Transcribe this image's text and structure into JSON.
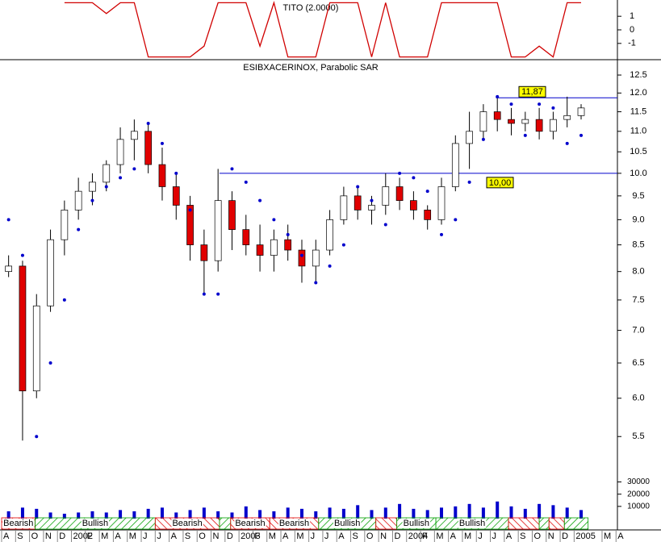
{
  "chart_data": {
    "type": "candlestick",
    "title": "ESIBXACERINOX, Parabolic SAR",
    "x": [
      0.5,
      1.5,
      2.5,
      3.5,
      4.5,
      5.5,
      6.5,
      7.5,
      8.5,
      9.5,
      10.5,
      11.5,
      12.5,
      13.5,
      14.5,
      15.5,
      16.5,
      17.5,
      18.5,
      19.5,
      20.5,
      21.5,
      22.5,
      23.5,
      24.5,
      25.5,
      26.5,
      27.5,
      28.5,
      29.5,
      30.5,
      31.5,
      32.5,
      33.5,
      34.5,
      35.5,
      36.5,
      37.5,
      38.5,
      39.5,
      40.5,
      41.5
    ],
    "xlim": [
      0,
      44.1
    ],
    "xticks": [
      {
        "value": 0,
        "label": "A"
      },
      {
        "value": 1,
        "label": "S"
      },
      {
        "value": 2,
        "label": "O"
      },
      {
        "value": 3,
        "label": "N"
      },
      {
        "value": 4,
        "label": "D"
      },
      {
        "value": 5,
        "label": "2002"
      },
      {
        "value": 6,
        "label": "F"
      },
      {
        "value": 7,
        "label": "M"
      },
      {
        "value": 8,
        "label": "A"
      },
      {
        "value": 9,
        "label": "M"
      },
      {
        "value": 10,
        "label": "J"
      },
      {
        "value": 11,
        "label": "J"
      },
      {
        "value": 12,
        "label": "A"
      },
      {
        "value": 13,
        "label": "S"
      },
      {
        "value": 14,
        "label": "O"
      },
      {
        "value": 15,
        "label": "N"
      },
      {
        "value": 16,
        "label": "D"
      },
      {
        "value": 17,
        "label": "2003"
      },
      {
        "value": 18,
        "label": "F"
      },
      {
        "value": 19,
        "label": "M"
      },
      {
        "value": 20,
        "label": "A"
      },
      {
        "value": 21,
        "label": "M"
      },
      {
        "value": 22,
        "label": "J"
      },
      {
        "value": 23,
        "label": "J"
      },
      {
        "value": 24,
        "label": "A"
      },
      {
        "value": 25,
        "label": "S"
      },
      {
        "value": 26,
        "label": "O"
      },
      {
        "value": 27,
        "label": "N"
      },
      {
        "value": 28,
        "label": "D"
      },
      {
        "value": 29,
        "label": "2004"
      },
      {
        "value": 30,
        "label": "F"
      },
      {
        "value": 31,
        "label": "M"
      },
      {
        "value": 32,
        "label": "A"
      },
      {
        "value": 33,
        "label": "M"
      },
      {
        "value": 34,
        "label": "J"
      },
      {
        "value": 35,
        "label": "J"
      },
      {
        "value": 36,
        "label": "A"
      },
      {
        "value": 37,
        "label": "S"
      },
      {
        "value": 38,
        "label": "O"
      },
      {
        "value": 39,
        "label": "N"
      },
      {
        "value": 40,
        "label": "D"
      },
      {
        "value": 41,
        "label": "2005"
      },
      {
        "value": 43,
        "label": "M"
      },
      {
        "value": 44,
        "label": "A"
      }
    ],
    "ohlc": {
      "open": [
        8.0,
        8.1,
        6.1,
        7.4,
        8.6,
        9.2,
        9.6,
        9.8,
        10.2,
        10.8,
        11.0,
        10.2,
        9.7,
        9.3,
        8.5,
        8.2,
        9.4,
        8.8,
        8.5,
        8.3,
        8.6,
        8.4,
        8.1,
        8.4,
        9.0,
        9.5,
        9.2,
        9.3,
        9.7,
        9.4,
        9.2,
        9.0,
        9.7,
        10.7,
        11.0,
        11.5,
        11.3,
        11.2,
        11.3,
        11.0,
        11.3,
        11.4
      ],
      "high": [
        8.3,
        8.2,
        7.6,
        8.8,
        9.4,
        9.9,
        10.0,
        10.3,
        11.1,
        11.3,
        11.2,
        10.6,
        10.0,
        9.5,
        8.8,
        10.1,
        9.6,
        9.1,
        8.9,
        8.8,
        8.9,
        8.6,
        8.6,
        9.2,
        9.7,
        9.7,
        9.5,
        10.0,
        9.9,
        9.6,
        9.3,
        9.9,
        10.9,
        11.5,
        11.7,
        11.9,
        11.6,
        11.5,
        11.6,
        11.5,
        11.9,
        11.7
      ],
      "low": [
        7.9,
        5.45,
        6.0,
        7.3,
        8.3,
        9.0,
        9.3,
        9.6,
        10.0,
        10.3,
        10.0,
        9.4,
        9.0,
        8.2,
        7.6,
        8.0,
        8.4,
        8.3,
        8.0,
        8.0,
        8.2,
        7.8,
        7.8,
        8.3,
        8.9,
        9.0,
        8.9,
        9.1,
        9.2,
        9.0,
        8.8,
        8.9,
        9.6,
        10.1,
        10.8,
        11.0,
        10.9,
        11.0,
        10.8,
        10.8,
        11.1,
        11.3
      ],
      "close": [
        8.1,
        6.1,
        7.4,
        8.6,
        9.2,
        9.6,
        9.8,
        10.2,
        10.8,
        11.0,
        10.2,
        9.7,
        9.3,
        8.5,
        8.2,
        9.4,
        8.8,
        8.5,
        8.3,
        8.6,
        8.4,
        8.1,
        8.4,
        9.0,
        9.5,
        9.2,
        9.3,
        9.7,
        9.4,
        9.2,
        9.0,
        9.7,
        10.7,
        11.0,
        11.5,
        11.3,
        11.2,
        11.3,
        11.0,
        11.3,
        11.4,
        11.6
      ]
    },
    "up_color": "#ffffff",
    "down_color": "#e00000",
    "sar": {
      "color": "#0000cc",
      "values": [
        9.0,
        8.3,
        5.5,
        6.5,
        7.5,
        8.8,
        9.4,
        9.7,
        9.9,
        10.1,
        11.2,
        10.7,
        10.0,
        9.2,
        7.6,
        7.6,
        10.1,
        9.8,
        9.4,
        9.0,
        8.7,
        8.3,
        7.8,
        8.1,
        8.5,
        9.7,
        9.4,
        8.9,
        10.0,
        9.9,
        9.6,
        8.7,
        9.0,
        9.8,
        10.8,
        11.9,
        11.7,
        10.9,
        11.7,
        11.6,
        10.7,
        10.9
      ]
    },
    "ylim": [
      5.03,
      12.92
    ],
    "log_scale": true,
    "yticks": [
      12.5,
      {
        "value": 12,
        "label": "12.0"
      },
      11.5,
      {
        "value": 11,
        "label": "11.0"
      },
      10.5,
      {
        "value": 10,
        "label": "10.0"
      },
      9.5,
      {
        "value": 9,
        "label": "9.0"
      },
      8.5,
      {
        "value": 8,
        "label": "8.0"
      },
      7.5,
      {
        "value": 7,
        "label": "7.0"
      },
      6.5,
      {
        "value": 6,
        "label": "6.0"
      },
      5.5
    ],
    "levels": [
      {
        "value": 11.87,
        "label": "11,87"
      },
      {
        "value": 10.0,
        "label": "10,00"
      }
    ],
    "level_color": "#0000cc",
    "indicator": {
      "title": "TITO (2.0000)",
      "color": "#d00000",
      "ylim": [
        -2.2,
        2.2
      ],
      "yticks": [
        1,
        0,
        -1
      ],
      "values": [
        null,
        null,
        null,
        null,
        2,
        2,
        2,
        1.2,
        2,
        2,
        -2,
        -2,
        -2,
        -2,
        -1.2,
        2,
        2,
        2,
        -1.2,
        2,
        -2,
        -2,
        -2,
        2,
        2,
        2,
        -2,
        2,
        -2,
        -2,
        -2,
        2,
        2,
        2,
        2,
        2,
        -2,
        -2,
        -1.2,
        -2,
        2,
        2
      ]
    },
    "volume": {
      "color": "#0000cc",
      "ylim": [
        0,
        33000
      ],
      "yticks": [
        10000,
        20000,
        30000
      ],
      "values": [
        6000,
        9000,
        8000,
        5000,
        4000,
        5000,
        6000,
        5000,
        7000,
        6000,
        8000,
        9000,
        5000,
        7000,
        9000,
        6000,
        5000,
        10000,
        7000,
        6000,
        9000,
        8000,
        6000,
        9000,
        8000,
        11000,
        7000,
        9000,
        12000,
        8000,
        7000,
        9000,
        10000,
        12000,
        9000,
        14000,
        10000,
        8000,
        12000,
        11000,
        9000,
        7000
      ]
    },
    "trend": [
      {
        "label": "Bearish",
        "start": 0,
        "end": 2.4,
        "color": "#e00000"
      },
      {
        "label": "Bullish",
        "start": 2.4,
        "end": 11,
        "color": "#00a000"
      },
      {
        "label": "Bearish",
        "start": 11,
        "end": 15.6,
        "color": "#e00000"
      },
      {
        "label": null,
        "start": 15.6,
        "end": 16.4,
        "color": "#00a000"
      },
      {
        "label": "Bearish",
        "start": 16.4,
        "end": 19.2,
        "color": "#e00000"
      },
      {
        "label": "Bearish",
        "start": 19.2,
        "end": 22.7,
        "color": "#e00000"
      },
      {
        "label": "Bullish",
        "start": 22.7,
        "end": 26.8,
        "color": "#00a000"
      },
      {
        "label": null,
        "start": 26.8,
        "end": 28.3,
        "color": "#e00000"
      },
      {
        "label": "Bullish",
        "start": 28.3,
        "end": 31.1,
        "color": "#00a000"
      },
      {
        "label": "Bullish",
        "start": 31.1,
        "end": 36.3,
        "color": "#00a000"
      },
      {
        "label": null,
        "start": 36.3,
        "end": 38.5,
        "color": "#e00000"
      },
      {
        "label": null,
        "start": 38.5,
        "end": 39.2,
        "color": "#00a000"
      },
      {
        "label": null,
        "start": 39.2,
        "end": 40.3,
        "color": "#e00000"
      },
      {
        "label": null,
        "start": 40.3,
        "end": 42,
        "color": "#00a000"
      }
    ]
  }
}
